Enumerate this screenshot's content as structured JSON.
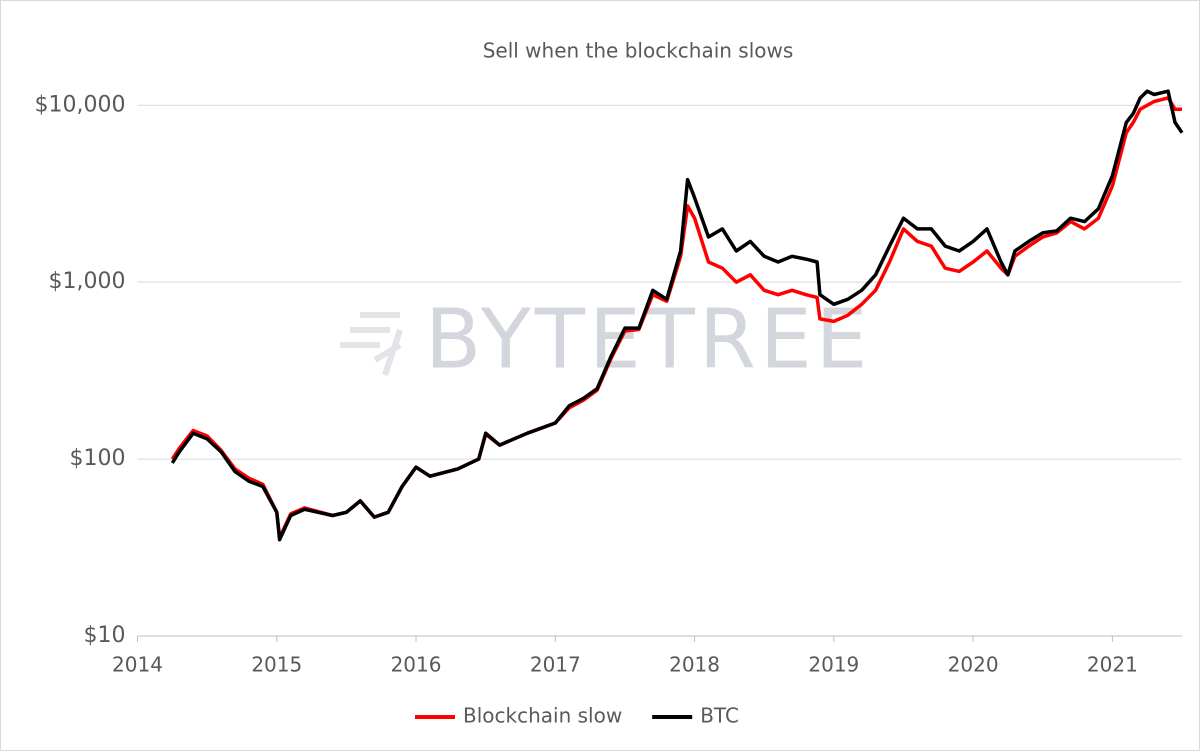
{
  "chart_data": {
    "type": "line",
    "title": "Sell when the blockchain slows",
    "watermark": "BYTETREE",
    "log_y": true,
    "grid": true,
    "legend": "bottom",
    "xlim": [
      2014,
      2021.5
    ],
    "xticks": [
      2014,
      2015,
      2016,
      2017,
      2018,
      2019,
      2020,
      2021
    ],
    "ylim": [
      10,
      20000
    ],
    "yticks": [
      {
        "value": 10,
        "label": "$10"
      },
      {
        "value": 100,
        "label": "$100"
      },
      {
        "value": 1000,
        "label": "$1,000"
      },
      {
        "value": 10000,
        "label": "$10,000"
      }
    ],
    "x": [
      2014.25,
      2014.3,
      2014.4,
      2014.5,
      2014.6,
      2014.7,
      2014.8,
      2014.9,
      2015.0,
      2015.02,
      2015.1,
      2015.2,
      2015.4,
      2015.5,
      2015.6,
      2015.7,
      2015.8,
      2015.9,
      2016.0,
      2016.1,
      2016.3,
      2016.45,
      2016.5,
      2016.6,
      2016.8,
      2017.0,
      2017.1,
      2017.2,
      2017.3,
      2017.4,
      2017.5,
      2017.6,
      2017.7,
      2017.8,
      2017.9,
      2017.95,
      2018.0,
      2018.1,
      2018.2,
      2018.3,
      2018.4,
      2018.5,
      2018.6,
      2018.7,
      2018.8,
      2018.88,
      2018.9,
      2019.0,
      2019.1,
      2019.2,
      2019.3,
      2019.4,
      2019.5,
      2019.6,
      2019.7,
      2019.8,
      2019.9,
      2020.0,
      2020.1,
      2020.2,
      2020.25,
      2020.3,
      2020.4,
      2020.5,
      2020.6,
      2020.7,
      2020.8,
      2020.9,
      2021.0,
      2021.1,
      2021.15,
      2021.2,
      2021.25,
      2021.3,
      2021.4,
      2021.45,
      2021.5
    ],
    "series": [
      {
        "name": "Blockchain slow",
        "color": "#ff0000",
        "values": [
          100,
          115,
          145,
          135,
          112,
          88,
          78,
          72,
          50,
          36,
          49,
          53,
          48,
          50,
          58,
          47,
          50,
          70,
          90,
          80,
          88,
          100,
          138,
          120,
          140,
          160,
          195,
          215,
          245,
          370,
          530,
          540,
          850,
          780,
          1400,
          2700,
          2300,
          1300,
          1200,
          1000,
          1100,
          900,
          850,
          900,
          850,
          820,
          620,
          600,
          650,
          750,
          900,
          1300,
          2000,
          1700,
          1600,
          1200,
          1150,
          1300,
          1500,
          1200,
          1100,
          1400,
          1600,
          1800,
          1900,
          2200,
          2000,
          2300,
          3500,
          7000,
          8000,
          9500,
          10000,
          10500,
          11000,
          9500,
          9500
        ]
      },
      {
        "name": "BTC",
        "color": "#000000",
        "values": [
          95,
          110,
          140,
          130,
          110,
          85,
          75,
          70,
          50,
          35,
          48,
          52,
          48,
          50,
          58,
          47,
          50,
          70,
          90,
          80,
          88,
          100,
          140,
          120,
          140,
          160,
          200,
          220,
          250,
          380,
          550,
          550,
          900,
          800,
          1500,
          3800,
          3000,
          1800,
          2000,
          1500,
          1700,
          1400,
          1300,
          1400,
          1350,
          1300,
          850,
          750,
          800,
          900,
          1100,
          1600,
          2300,
          2000,
          2000,
          1600,
          1500,
          1700,
          2000,
          1300,
          1100,
          1500,
          1700,
          1900,
          1950,
          2300,
          2200,
          2600,
          4000,
          8000,
          9000,
          11000,
          12000,
          11500,
          12000,
          8000,
          7000
        ]
      }
    ]
  }
}
